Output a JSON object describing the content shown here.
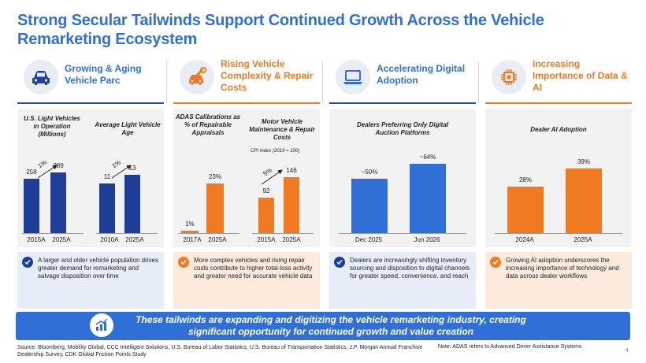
{
  "title": "Strong Secular Tailwinds Support Continued Growth Across the Vehicle Remarketing Ecosystem",
  "columns": [
    {
      "heading": "Growing & Aging Vehicle Parc",
      "icon": "car-icon",
      "bullet": "A larger and older vehicle population drives greater demand for remarketing and salvage disposition over time"
    },
    {
      "heading": "Rising Vehicle Complexity & Repair Costs",
      "icon": "car-wrench-icon",
      "bullet": "More complex vehicles and rising repair costs contribute to higher total-loss activity and greater need for accurate vehicle data"
    },
    {
      "heading": "Accelerating Digital Adoption",
      "icon": "laptop-icon",
      "bullet": "Dealers are increasingly shifting inventory sourcing and disposition to digital channels for greater speed, convenience, and reach"
    },
    {
      "heading": "Increasing Importance of Data & AI",
      "icon": "ai-chip-icon",
      "bullet": "Growing AI adoption underscores the increasing importance of technology and data across dealer workflows"
    }
  ],
  "chart_data": [
    {
      "type": "bar",
      "title": "U.S. Light Vehicles in Operation (Millions)",
      "categories": [
        "2015A",
        "2025A"
      ],
      "values": [
        258,
        289
      ],
      "labels": [
        "258",
        "289"
      ],
      "annotation": "1%",
      "color": "#1f3e9a"
    },
    {
      "type": "bar",
      "title": "Average Light Vehicle Age",
      "categories": [
        "2010A",
        "2025A"
      ],
      "values": [
        11,
        13
      ],
      "labels": [
        "11",
        "13"
      ],
      "annotation": "1%",
      "color": "#1f3e9a"
    },
    {
      "type": "bar",
      "title": "ADAS Calibrations as % of Repairable Appraisals",
      "categories": [
        "2017A",
        "2025A"
      ],
      "values": [
        1,
        23
      ],
      "labels": [
        "1%",
        "23%"
      ],
      "color": "#f07a22"
    },
    {
      "type": "bar",
      "title": "Motor Vehicle Maintenance & Repair Costs",
      "note": "CPI Index (2019 = 100)",
      "categories": [
        "2015A",
        "2025A"
      ],
      "values": [
        92,
        146
      ],
      "labels": [
        "92",
        "146"
      ],
      "annotation": "5%",
      "color": "#f07a22"
    },
    {
      "type": "bar",
      "title": "Dealers Preferring Only Digital Auction Platforms",
      "categories": [
        "Dec 2025",
        "Jun 2026"
      ],
      "values": [
        50,
        64
      ],
      "labels": [
        "~50%",
        "~64%"
      ],
      "color": "#2f6fd6"
    },
    {
      "type": "bar",
      "title": "Dealer AI Adoption",
      "categories": [
        "2024A",
        "2025A"
      ],
      "values": [
        28,
        39
      ],
      "labels": [
        "28%",
        "39%"
      ],
      "color": "#f07a22"
    }
  ],
  "banner": {
    "text": "These tailwinds are expanding and digitizing the vehicle remarketing industry, creating significant opportunity for continued growth and value creation",
    "icon": "growth-chart-icon"
  },
  "source": "Source: Bloomberg, Mobility Global, CCC Intelligent Solutions, U.S. Bureau of Labor Statistics, U.S. Bureau of Transportation Statistics, J.P. Morgan Annual Franchise Dealership Survey, CDK Global Friction Points Study",
  "footnote": "Note: ADAS refers to Advanced Driver Assistance Systems",
  "page_number": "4"
}
